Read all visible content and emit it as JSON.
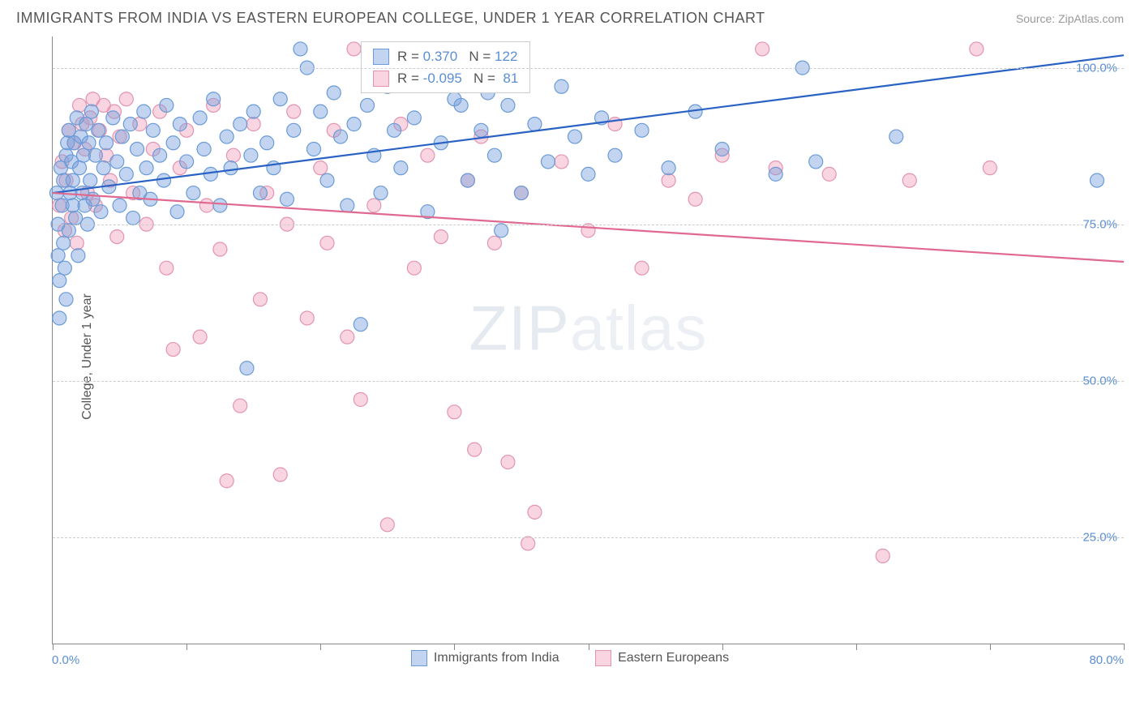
{
  "title": "IMMIGRANTS FROM INDIA VS EASTERN EUROPEAN COLLEGE, UNDER 1 YEAR CORRELATION CHART",
  "source": "Source: ZipAtlas.com",
  "ylabel": "College, Under 1 year",
  "watermark_bold": "ZIP",
  "watermark_thin": "atlas",
  "chart": {
    "type": "scatter",
    "xlim": [
      0,
      80
    ],
    "ylim": [
      8,
      105
    ],
    "x_ticks": [
      0,
      10,
      20,
      30,
      40,
      50,
      60,
      70,
      80
    ],
    "y_gridlines": [
      25,
      50,
      75,
      100
    ],
    "y_tick_labels": [
      "25.0%",
      "50.0%",
      "75.0%",
      "100.0%"
    ],
    "x_min_label": "0.0%",
    "x_max_label": "80.0%",
    "background_color": "#ffffff",
    "grid_color": "#cccccc",
    "axis_color": "#888888",
    "marker_radius": 8.5,
    "marker_stroke_width": 1.2,
    "line_width": 2.2,
    "series": [
      {
        "name": "Immigrants from India",
        "fill_color": "rgba(120,160,220,0.45)",
        "stroke_color": "#6a9bd8",
        "line_color": "#2962c4",
        "R": "0.370",
        "N": "122",
        "trend": {
          "x1": 0,
          "y1": 80,
          "x2": 80,
          "y2": 102
        },
        "points": [
          [
            0.3,
            80
          ],
          [
            0.4,
            75
          ],
          [
            0.4,
            70
          ],
          [
            0.5,
            66
          ],
          [
            0.5,
            60
          ],
          [
            0.6,
            84
          ],
          [
            0.7,
            78
          ],
          [
            0.8,
            72
          ],
          [
            0.8,
            82
          ],
          [
            0.9,
            68
          ],
          [
            1.0,
            86
          ],
          [
            1.0,
            63
          ],
          [
            1.1,
            88
          ],
          [
            1.2,
            74
          ],
          [
            1.2,
            90
          ],
          [
            1.3,
            80
          ],
          [
            1.4,
            85
          ],
          [
            1.5,
            78
          ],
          [
            1.5,
            82
          ],
          [
            1.6,
            88
          ],
          [
            1.7,
            76
          ],
          [
            1.8,
            92
          ],
          [
            1.9,
            70
          ],
          [
            2.0,
            84
          ],
          [
            2.1,
            89
          ],
          [
            2.2,
            80
          ],
          [
            2.3,
            86
          ],
          [
            2.4,
            78
          ],
          [
            2.5,
            91
          ],
          [
            2.6,
            75
          ],
          [
            2.7,
            88
          ],
          [
            2.8,
            82
          ],
          [
            2.9,
            93
          ],
          [
            3.0,
            79
          ],
          [
            3.2,
            86
          ],
          [
            3.4,
            90
          ],
          [
            3.6,
            77
          ],
          [
            3.8,
            84
          ],
          [
            4.0,
            88
          ],
          [
            4.2,
            81
          ],
          [
            4.5,
            92
          ],
          [
            4.8,
            85
          ],
          [
            5.0,
            78
          ],
          [
            5.2,
            89
          ],
          [
            5.5,
            83
          ],
          [
            5.8,
            91
          ],
          [
            6.0,
            76
          ],
          [
            6.3,
            87
          ],
          [
            6.5,
            80
          ],
          [
            6.8,
            93
          ],
          [
            7.0,
            84
          ],
          [
            7.3,
            79
          ],
          [
            7.5,
            90
          ],
          [
            8.0,
            86
          ],
          [
            8.3,
            82
          ],
          [
            8.5,
            94
          ],
          [
            9.0,
            88
          ],
          [
            9.3,
            77
          ],
          [
            9.5,
            91
          ],
          [
            10.0,
            85
          ],
          [
            10.5,
            80
          ],
          [
            11.0,
            92
          ],
          [
            11.3,
            87
          ],
          [
            11.8,
            83
          ],
          [
            12.0,
            95
          ],
          [
            12.5,
            78
          ],
          [
            13.0,
            89
          ],
          [
            13.3,
            84
          ],
          [
            14.0,
            91
          ],
          [
            14.5,
            52
          ],
          [
            14.8,
            86
          ],
          [
            15.0,
            93
          ],
          [
            15.5,
            80
          ],
          [
            16.0,
            88
          ],
          [
            16.5,
            84
          ],
          [
            17.0,
            95
          ],
          [
            17.5,
            79
          ],
          [
            18.0,
            90
          ],
          [
            18.5,
            103
          ],
          [
            19.0,
            100
          ],
          [
            19.5,
            87
          ],
          [
            20.0,
            93
          ],
          [
            20.5,
            82
          ],
          [
            21.0,
            96
          ],
          [
            21.5,
            89
          ],
          [
            22.0,
            78
          ],
          [
            22.5,
            91
          ],
          [
            23.0,
            59
          ],
          [
            23.5,
            94
          ],
          [
            24.0,
            86
          ],
          [
            24.5,
            80
          ],
          [
            25.0,
            97
          ],
          [
            25.5,
            90
          ],
          [
            26.0,
            84
          ],
          [
            27.0,
            92
          ],
          [
            28.0,
            77
          ],
          [
            29.0,
            88
          ],
          [
            30.0,
            95
          ],
          [
            30.5,
            94
          ],
          [
            31.0,
            82
          ],
          [
            32.0,
            90
          ],
          [
            32.5,
            96
          ],
          [
            33.0,
            86
          ],
          [
            33.5,
            74
          ],
          [
            34.0,
            94
          ],
          [
            35.0,
            80
          ],
          [
            36.0,
            91
          ],
          [
            37.0,
            85
          ],
          [
            38.0,
            97
          ],
          [
            39.0,
            89
          ],
          [
            40.0,
            83
          ],
          [
            41.0,
            92
          ],
          [
            42.0,
            86
          ],
          [
            44.0,
            90
          ],
          [
            46.0,
            84
          ],
          [
            48.0,
            93
          ],
          [
            50.0,
            87
          ],
          [
            54.0,
            83
          ],
          [
            56.0,
            100
          ],
          [
            57.0,
            85
          ],
          [
            63.0,
            89
          ],
          [
            78.0,
            82
          ]
        ]
      },
      {
        "name": "Eastern Europeans",
        "fill_color": "rgba(240,150,180,0.4)",
        "stroke_color": "#e394b0",
        "line_color": "#e06a8f",
        "R": "-0.095",
        "N": "81",
        "trend": {
          "x1": 0,
          "y1": 80,
          "x2": 80,
          "y2": 69
        },
        "points": [
          [
            0.5,
            78
          ],
          [
            0.7,
            85
          ],
          [
            0.9,
            74
          ],
          [
            1.0,
            82
          ],
          [
            1.2,
            90
          ],
          [
            1.4,
            76
          ],
          [
            1.6,
            88
          ],
          [
            1.8,
            72
          ],
          [
            2.0,
            94
          ],
          [
            2.2,
            91
          ],
          [
            2.4,
            87
          ],
          [
            2.6,
            80
          ],
          [
            2.8,
            92
          ],
          [
            3.0,
            95
          ],
          [
            3.2,
            78
          ],
          [
            3.5,
            90
          ],
          [
            3.8,
            94
          ],
          [
            4.0,
            86
          ],
          [
            4.3,
            82
          ],
          [
            4.6,
            93
          ],
          [
            4.8,
            73
          ],
          [
            5.0,
            89
          ],
          [
            5.5,
            95
          ],
          [
            6.0,
            80
          ],
          [
            6.5,
            91
          ],
          [
            7.0,
            75
          ],
          [
            7.5,
            87
          ],
          [
            8.0,
            93
          ],
          [
            8.5,
            68
          ],
          [
            9.0,
            55
          ],
          [
            9.5,
            84
          ],
          [
            10.0,
            90
          ],
          [
            11.0,
            57
          ],
          [
            11.5,
            78
          ],
          [
            12.0,
            94
          ],
          [
            12.5,
            71
          ],
          [
            13.0,
            34
          ],
          [
            13.5,
            86
          ],
          [
            14.0,
            46
          ],
          [
            15.0,
            91
          ],
          [
            15.5,
            63
          ],
          [
            16.0,
            80
          ],
          [
            17.0,
            35
          ],
          [
            17.5,
            75
          ],
          [
            18.0,
            93
          ],
          [
            19.0,
            60
          ],
          [
            20.0,
            84
          ],
          [
            20.5,
            72
          ],
          [
            21.0,
            90
          ],
          [
            22.0,
            57
          ],
          [
            22.5,
            103
          ],
          [
            23.0,
            47
          ],
          [
            24.0,
            78
          ],
          [
            25.0,
            27
          ],
          [
            26.0,
            91
          ],
          [
            27.0,
            68
          ],
          [
            28.0,
            86
          ],
          [
            29.0,
            73
          ],
          [
            30.0,
            45
          ],
          [
            31.0,
            82
          ],
          [
            31.5,
            39
          ],
          [
            32.0,
            89
          ],
          [
            33.0,
            72
          ],
          [
            34.0,
            37
          ],
          [
            35.0,
            80
          ],
          [
            35.5,
            24
          ],
          [
            36.0,
            29
          ],
          [
            38.0,
            85
          ],
          [
            40.0,
            74
          ],
          [
            42.0,
            91
          ],
          [
            44.0,
            68
          ],
          [
            46.0,
            82
          ],
          [
            48.0,
            79
          ],
          [
            50.0,
            86
          ],
          [
            53.0,
            103
          ],
          [
            54.0,
            84
          ],
          [
            58.0,
            83
          ],
          [
            62.0,
            22
          ],
          [
            64.0,
            82
          ],
          [
            69.0,
            103
          ],
          [
            70.0,
            84
          ]
        ]
      }
    ]
  },
  "bottom_legend": [
    {
      "label": "Immigrants from India",
      "fill": "rgba(120,160,220,0.45)",
      "stroke": "#6a9bd8"
    },
    {
      "label": "Eastern Europeans",
      "fill": "rgba(240,150,180,0.4)",
      "stroke": "#e394b0"
    }
  ]
}
